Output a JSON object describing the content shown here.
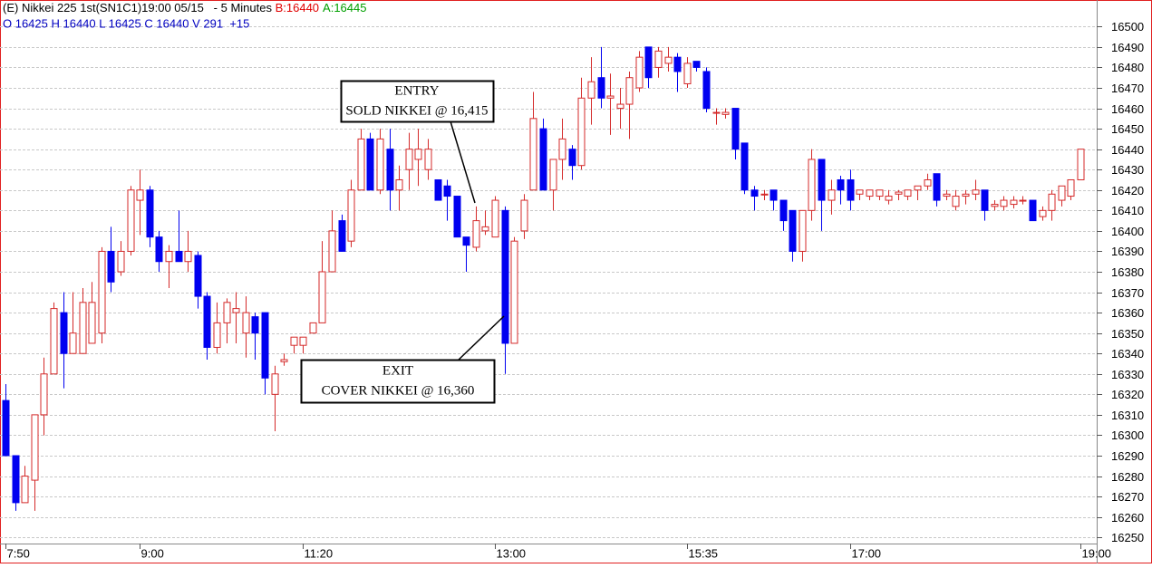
{
  "chart_data": {
    "type": "candlestick",
    "header": {
      "line1": "(E) Nikkei 225 1st(SN1C1)19:00 05/15   - 5 Minutes ",
      "bid": "B:16440",
      "ask": "A:16445",
      "line2": "O 16425 H 16440 L 16425 C 16440 V 291  +15"
    },
    "annotations": [
      {
        "lines": [
          "ENTRY",
          "SOLD NIKKEI @ 16,415"
        ]
      },
      {
        "lines": [
          "EXIT",
          "COVER NIKKEI @ 16,360"
        ]
      }
    ],
    "categories": [
      "7:50",
      null,
      null,
      null,
      null,
      null,
      null,
      null,
      null,
      null,
      null,
      null,
      null,
      null,
      "9:00",
      null,
      null,
      null,
      null,
      null,
      null,
      null,
      null,
      null,
      null,
      null,
      null,
      null,
      null,
      null,
      null,
      "11:20",
      null,
      null,
      null,
      null,
      null,
      null,
      null,
      null,
      null,
      null,
      null,
      null,
      null,
      null,
      null,
      null,
      null,
      null,
      null,
      "13:00",
      null,
      null,
      null,
      null,
      null,
      null,
      null,
      null,
      null,
      null,
      null,
      null,
      null,
      null,
      null,
      null,
      null,
      null,
      null,
      "15:35",
      null,
      null,
      null,
      null,
      null,
      null,
      null,
      null,
      null,
      null,
      null,
      null,
      null,
      null,
      null,
      null,
      "17:00",
      null,
      null,
      null,
      null,
      null,
      null,
      null,
      null,
      null,
      null,
      null,
      null,
      null,
      null,
      null,
      null,
      null,
      null,
      null,
      null,
      null,
      null,
      null,
      "19:00"
    ],
    "open": [
      16317,
      16290,
      16267,
      16278,
      16310,
      16330,
      16360,
      16340,
      16340,
      16345,
      16350,
      16390,
      16380,
      16390,
      16415,
      16420,
      16397,
      16385,
      16390,
      16385,
      16388,
      16368,
      16343,
      16355,
      16360,
      16350,
      16358,
      16360,
      16320,
      16336,
      16344,
      16344,
      16350,
      16355,
      16380,
      16405,
      16395,
      16420,
      16445,
      16420,
      16440,
      16420,
      16430,
      16435,
      16430,
      16425,
      16422,
      16417,
      16397,
      16392,
      16400,
      16397,
      16410,
      16345,
      16400,
      16420,
      16450,
      16420,
      16435,
      16440,
      16432,
      16465,
      16475,
      16465,
      16460,
      16462,
      16470,
      16490,
      16480,
      16482,
      16485,
      16472,
      16483,
      16478,
      16458,
      16457,
      16460,
      16443,
      16420,
      16418,
      16420,
      16415,
      16410,
      16390,
      16410,
      16435,
      16415,
      16425,
      16425,
      16418,
      16417,
      16417,
      16415,
      16418,
      16417,
      16420,
      16422,
      16428,
      16417,
      16412,
      16417,
      16418,
      16420,
      16412,
      16412,
      16413,
      16415,
      16415,
      16407,
      16410,
      16415,
      16417,
      16425
    ],
    "high": [
      16325,
      16290,
      16285,
      16310,
      16338,
      16365,
      16370,
      16370,
      16372,
      16375,
      16392,
      16402,
      16395,
      16422,
      16430,
      16422,
      16400,
      16393,
      16410,
      16400,
      16390,
      16370,
      16365,
      16367,
      16370,
      16368,
      16360,
      16360,
      16334,
      16340,
      16348,
      16348,
      16355,
      16395,
      16410,
      16408,
      16425,
      16450,
      16448,
      16450,
      16450,
      16432,
      16448,
      16450,
      16445,
      16425,
      16425,
      16417,
      16397,
      16412,
      16410,
      16417,
      16412,
      16397,
      16418,
      16468,
      16455,
      16435,
      16455,
      16442,
      16475,
      16485,
      16490,
      16477,
      16470,
      16478,
      16488,
      16490,
      16490,
      16490,
      16487,
      16485,
      16483,
      16480,
      16460,
      16460,
      16460,
      16443,
      16422,
      16420,
      16420,
      16415,
      16410,
      16410,
      16440,
      16435,
      16425,
      16427,
      16430,
      16420,
      16420,
      16420,
      16420,
      16420,
      16420,
      16422,
      16428,
      16428,
      16420,
      16420,
      16420,
      16425,
      16420,
      16415,
      16417,
      16417,
      16417,
      16415,
      16412,
      16420,
      16422,
      16425,
      16440
    ],
    "low": [
      16290,
      16263,
      16267,
      16263,
      16300,
      16330,
      16323,
      16340,
      16340,
      16345,
      16345,
      16370,
      16378,
      16388,
      16398,
      16392,
      16380,
      16372,
      16385,
      16380,
      16362,
      16337,
      16340,
      16345,
      16345,
      16338,
      16337,
      16320,
      16302,
      16334,
      16340,
      16340,
      16350,
      16355,
      16380,
      16390,
      16392,
      16420,
      16420,
      16418,
      16410,
      16410,
      16420,
      16422,
      16425,
      16415,
      16405,
      16397,
      16380,
      16390,
      16398,
      16397,
      16330,
      16345,
      16396,
      16420,
      16420,
      16410,
      16425,
      16425,
      16430,
      16452,
      16460,
      16447,
      16450,
      16445,
      16468,
      16470,
      16475,
      16478,
      16468,
      16470,
      16478,
      16458,
      16452,
      16455,
      16435,
      16418,
      16410,
      16415,
      16410,
      16400,
      16385,
      16385,
      16405,
      16400,
      16408,
      16413,
      16410,
      16415,
      16415,
      16415,
      16413,
      16415,
      16415,
      16415,
      16420,
      16412,
      16415,
      16410,
      16413,
      16415,
      16405,
      16410,
      16410,
      16411,
      16413,
      16405,
      16405,
      16405,
      16412,
      16415,
      16425
    ],
    "close": [
      16290,
      16267,
      16280,
      16310,
      16330,
      16362,
      16340,
      16350,
      16365,
      16365,
      16390,
      16375,
      16390,
      16420,
      16420,
      16397,
      16385,
      16390,
      16385,
      16390,
      16368,
      16343,
      16355,
      16365,
      16362,
      16360,
      16350,
      16328,
      16330,
      16337,
      16348,
      16348,
      16355,
      16380,
      16400,
      16390,
      16420,
      16445,
      16420,
      16445,
      16420,
      16425,
      16440,
      16440,
      16440,
      16415,
      16417,
      16397,
      16393,
      16405,
      16402,
      16415,
      16345,
      16395,
      16415,
      16455,
      16420,
      16435,
      16445,
      16432,
      16465,
      16473,
      16465,
      16466,
      16462,
      16475,
      16485,
      16475,
      16488,
      16485,
      16478,
      16482,
      16480,
      16460,
      16458,
      16458,
      16440,
      16420,
      16417,
      16418,
      16415,
      16405,
      16390,
      16410,
      16435,
      16415,
      16420,
      16420,
      16415,
      16420,
      16420,
      16420,
      16417,
      16419,
      16420,
      16422,
      16425,
      16415,
      16418,
      16417,
      16418,
      16420,
      16410,
      16413,
      16415,
      16415,
      16415,
      16405,
      16410,
      16418,
      16422,
      16425,
      16440
    ],
    "up_color": "#d42a2a",
    "down_color": "#0000f0",
    "ylim": [
      16247,
      16513
    ],
    "yticks": [
      16250,
      16260,
      16270,
      16280,
      16290,
      16300,
      16310,
      16320,
      16330,
      16340,
      16350,
      16360,
      16370,
      16380,
      16390,
      16400,
      16410,
      16420,
      16430,
      16440,
      16450,
      16460,
      16470,
      16480,
      16490,
      16500
    ],
    "grid": true
  }
}
